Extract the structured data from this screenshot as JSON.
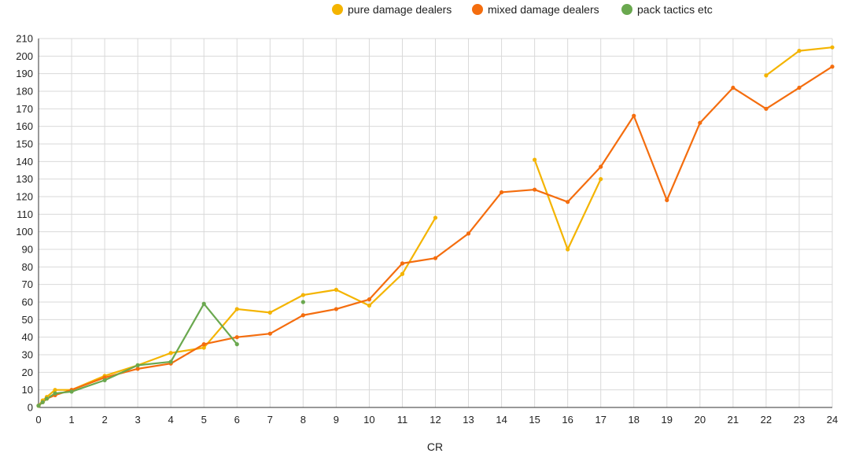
{
  "chart_data": {
    "type": "line",
    "title": "",
    "xlabel": "CR",
    "ylabel": "",
    "xlim": [
      0,
      24
    ],
    "ylim": [
      0,
      210
    ],
    "x_ticks": [
      0,
      1,
      2,
      3,
      4,
      5,
      6,
      7,
      8,
      9,
      10,
      11,
      12,
      13,
      14,
      15,
      16,
      17,
      18,
      19,
      20,
      21,
      22,
      23,
      24
    ],
    "y_ticks": [
      0,
      10,
      20,
      30,
      40,
      50,
      60,
      70,
      80,
      90,
      100,
      110,
      120,
      130,
      140,
      150,
      160,
      170,
      180,
      190,
      200,
      210
    ],
    "grid": true,
    "legend_position": "top",
    "series": [
      {
        "name": "pure damage dealers",
        "color": "#F4B400",
        "segments": [
          [
            [
              0,
              1
            ],
            [
              0.125,
              4
            ],
            [
              0.25,
              6
            ],
            [
              0.5,
              10
            ],
            [
              1,
              10
            ],
            [
              2,
              18
            ],
            [
              3,
              24
            ],
            [
              4,
              31
            ],
            [
              5,
              34
            ],
            [
              6,
              56
            ],
            [
              7,
              54
            ],
            [
              8,
              64
            ],
            [
              9,
              67
            ],
            [
              10,
              58
            ],
            [
              11,
              76
            ],
            [
              12,
              108
            ]
          ],
          [
            [
              15,
              141
            ],
            [
              16,
              90
            ],
            [
              17,
              130
            ]
          ],
          [
            [
              22,
              189
            ],
            [
              23,
              203
            ],
            [
              24,
              205
            ]
          ]
        ]
      },
      {
        "name": "mixed damage dealers",
        "color": "#F46D0E",
        "segments": [
          [
            [
              0,
              1
            ],
            [
              0.125,
              3
            ],
            [
              0.25,
              5
            ],
            [
              0.5,
              7
            ],
            [
              1,
              10
            ],
            [
              2,
              17
            ],
            [
              3,
              22
            ],
            [
              4,
              25
            ],
            [
              5,
              36
            ],
            [
              6,
              40
            ],
            [
              7,
              42
            ],
            [
              8,
              52.5
            ],
            [
              9,
              56
            ],
            [
              10,
              61.5
            ],
            [
              11,
              82
            ],
            [
              12,
              85
            ],
            [
              13,
              99
            ],
            [
              14,
              122.5
            ],
            [
              15,
              124
            ],
            [
              16,
              117
            ],
            [
              17,
              137
            ],
            [
              18,
              166
            ],
            [
              19,
              118
            ],
            [
              20,
              162
            ],
            [
              21,
              182
            ],
            [
              22,
              170
            ],
            [
              23,
              182
            ],
            [
              24,
              194
            ]
          ]
        ]
      },
      {
        "name": "pack tactics etc",
        "color": "#6AA84F",
        "segments": [
          [
            [
              0,
              1
            ],
            [
              0.125,
              3
            ],
            [
              0.25,
              5
            ],
            [
              0.5,
              8
            ],
            [
              1,
              9
            ],
            [
              2,
              15.5
            ],
            [
              3,
              24
            ],
            [
              4,
              26
            ],
            [
              5,
              59
            ],
            [
              6,
              36
            ]
          ],
          [
            [
              8,
              60
            ]
          ]
        ]
      }
    ]
  }
}
